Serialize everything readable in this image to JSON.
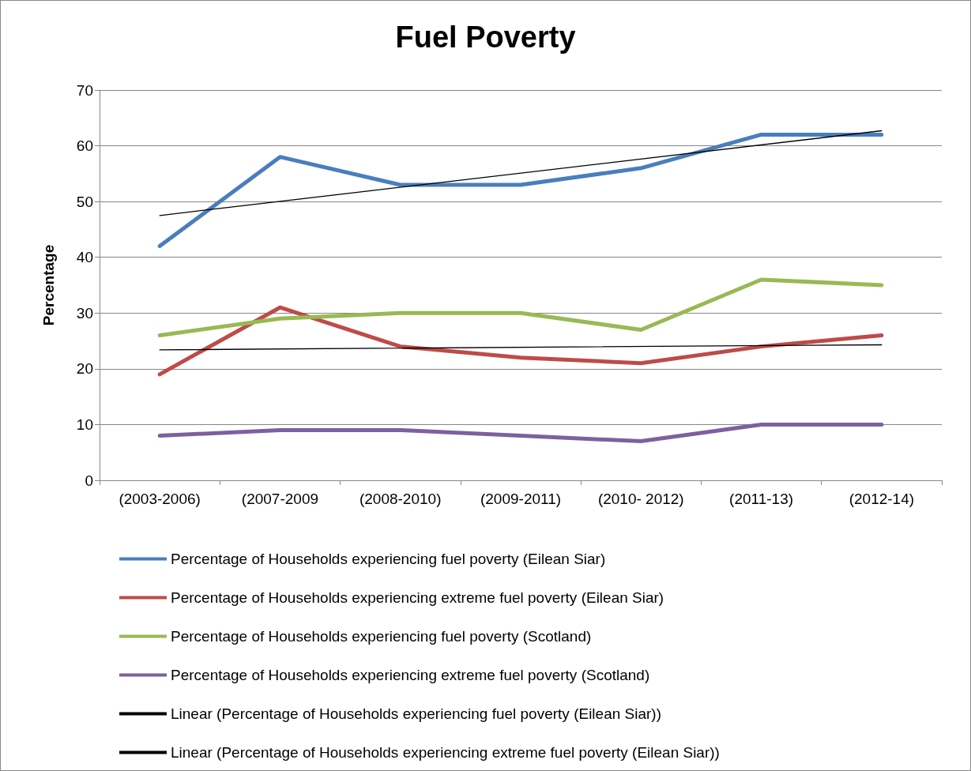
{
  "chart_data": {
    "type": "line",
    "title": "Fuel Poverty",
    "ylabel": "Percentage",
    "categories": [
      "(2003-2006)",
      "(2007-2009",
      "(2008-2010)",
      "(2009-2011)",
      "(2010- 2012)",
      "(2011-13)",
      "(2012-14)"
    ],
    "series": [
      {
        "name": "Percentage of Households experiencing fuel poverty (Eilean Siar)",
        "color": "#4a7ebb",
        "values": [
          42,
          58,
          53,
          53,
          56,
          62,
          62
        ]
      },
      {
        "name": "Percentage of Households experiencing extreme fuel poverty (Eilean Siar)",
        "color": "#be4b48",
        "values": [
          19,
          31,
          24,
          22,
          21,
          24,
          26
        ]
      },
      {
        "name": "Percentage of Households experiencing fuel poverty (Scotland)",
        "color": "#98b954",
        "values": [
          26,
          29,
          30,
          30,
          27,
          36,
          35
        ]
      },
      {
        "name": "Percentage of Households experiencing extreme fuel poverty (Scotland)",
        "color": "#7d60a0",
        "values": [
          8,
          9,
          9,
          8,
          7,
          10,
          10
        ]
      },
      {
        "name": "Linear (Percentage of Households experiencing fuel poverty (Eilean Siar))",
        "color": "#000000",
        "x": [
          "(2003-2006)",
          "(2012-14)"
        ],
        "values": [
          47.5,
          62.7
        ]
      },
      {
        "name": "Linear (Percentage of Households experiencing extreme fuel poverty (Eilean Siar))",
        "color": "#000000",
        "x": [
          "(2003-2006)",
          "(2012-14)"
        ],
        "values": [
          23.4,
          24.3
        ]
      }
    ],
    "ylim": [
      0,
      70
    ],
    "yticks": [
      0,
      10,
      20,
      30,
      40,
      50,
      60,
      70
    ],
    "grid": "y",
    "legend": "bottom",
    "marker": "none",
    "line_style": "solid"
  }
}
